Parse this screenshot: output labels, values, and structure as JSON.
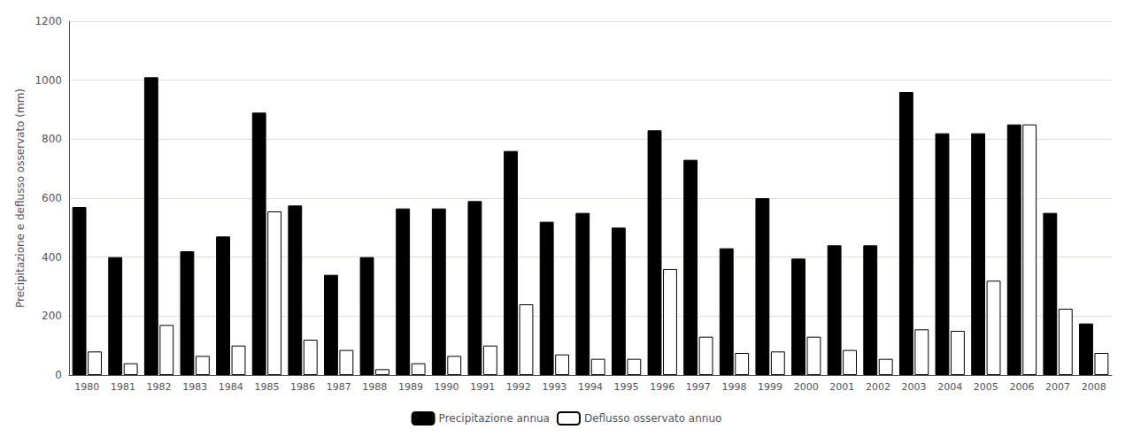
{
  "chart_data": {
    "type": "bar",
    "categories": [
      "1980",
      "1981",
      "1982",
      "1983",
      "1984",
      "1985",
      "1986",
      "1987",
      "1988",
      "1989",
      "1990",
      "1991",
      "1992",
      "1993",
      "1994",
      "1995",
      "1996",
      "1997",
      "1998",
      "1999",
      "2000",
      "2001",
      "2002",
      "2003",
      "2004",
      "2005",
      "2006",
      "2007",
      "2008"
    ],
    "series": [
      {
        "name": "Precipitazione annua",
        "color": "#000000",
        "values": [
          570,
          400,
          1010,
          420,
          470,
          890,
          575,
          340,
          400,
          565,
          565,
          590,
          760,
          520,
          550,
          500,
          830,
          730,
          430,
          600,
          395,
          440,
          440,
          960,
          820,
          820,
          850,
          550,
          175
        ]
      },
      {
        "name": "Deflusso osservato annuo",
        "color": "#ffffff",
        "values": [
          80,
          40,
          170,
          65,
          100,
          555,
          120,
          85,
          20,
          40,
          65,
          100,
          240,
          70,
          55,
          55,
          360,
          130,
          75,
          80,
          130,
          85,
          55,
          155,
          150,
          320,
          850,
          225,
          75
        ]
      }
    ],
    "ylabel": "Precipitazione e deflusso osservato (mm)",
    "ylim": [
      0,
      1200
    ],
    "yticks": [
      0,
      200,
      400,
      600,
      800,
      1000,
      1200
    ],
    "grid": true,
    "legend": "bottom"
  }
}
